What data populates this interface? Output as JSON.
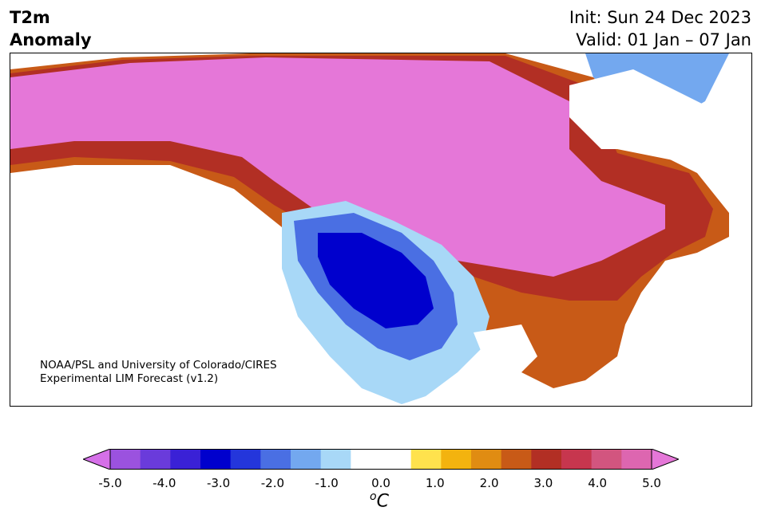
{
  "header": {
    "variable": "T2m",
    "type": "Anomaly",
    "init": "Init: Sun 24 Dec 2023",
    "valid": "Valid: 01 Jan – 07 Jan"
  },
  "map": {
    "credit_line1": "NOAA/PSL and University of Colorado/CIRES",
    "credit_line2": "Experimental LIM Forecast (v1.2)"
  },
  "colorbar": {
    "units": "C",
    "units_superscript": "o",
    "ticks": [
      "-5.0",
      "-4.0",
      "-3.0",
      "-2.0",
      "-1.0",
      "0.0",
      "1.0",
      "2.0",
      "3.0",
      "4.0",
      "5.0"
    ],
    "colors": [
      "#d570e8",
      "#9b52df",
      "#6a3bdb",
      "#3a21d6",
      "#0000cd",
      "#2436db",
      "#4a6fe3",
      "#73a8ef",
      "#a8d8f7",
      "#ffffff",
      "#ffffff",
      "#ffe24d",
      "#f3b30f",
      "#e08c12",
      "#c85a17",
      "#b22f24",
      "#c7364e",
      "#d2557f",
      "#dd66b0",
      "#e577d8"
    ]
  }
}
